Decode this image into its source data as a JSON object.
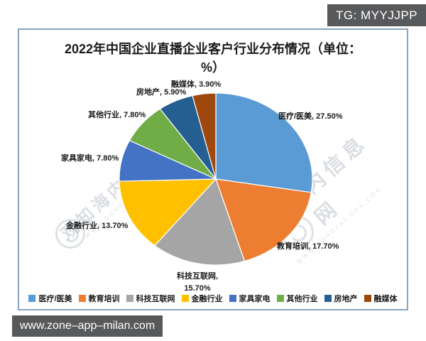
{
  "overlay": {
    "tg_badge": "TG: MYYJJPP",
    "url_badge": "www.zone–app–milan.com"
  },
  "watermark": {
    "text": "观知海内信息网",
    "subtext": "WWW.DONGFAI.GOA.CON"
  },
  "chart_data": {
    "type": "pie",
    "title": "2022年中国企业直播企业客户行业分布情况（单位：%）",
    "unit": "%",
    "start_angle_deg": 0,
    "direction": "clockwise",
    "legend_position": "bottom",
    "slices": [
      {
        "label": "医疗/医美",
        "value": 27.5,
        "callout": "医疗/医美, 27.50%",
        "color": "#5B9BD5"
      },
      {
        "label": "教育培训",
        "value": 17.7,
        "callout": "教育培训, 17.70%",
        "color": "#ED7D31"
      },
      {
        "label": "科技互联网",
        "value": 15.7,
        "callout": "科技互联网, 15.70%",
        "color": "#A5A5A5"
      },
      {
        "label": "金融行业",
        "value": 13.7,
        "callout": "金融行业, 13.70%",
        "color": "#FFC000"
      },
      {
        "label": "家具家电",
        "value": 7.8,
        "callout": "家具家电, 7.80%",
        "color": "#4472C4"
      },
      {
        "label": "其他行业",
        "value": 7.8,
        "callout": "其他行业, 7.80%",
        "color": "#70AD47"
      },
      {
        "label": "房地产",
        "value": 5.9,
        "callout": "房地产, 5.90%",
        "color": "#255E91"
      },
      {
        "label": "融媒体",
        "value": 3.9,
        "callout": "融媒体, 3.90%",
        "color": "#9E480E"
      }
    ]
  }
}
